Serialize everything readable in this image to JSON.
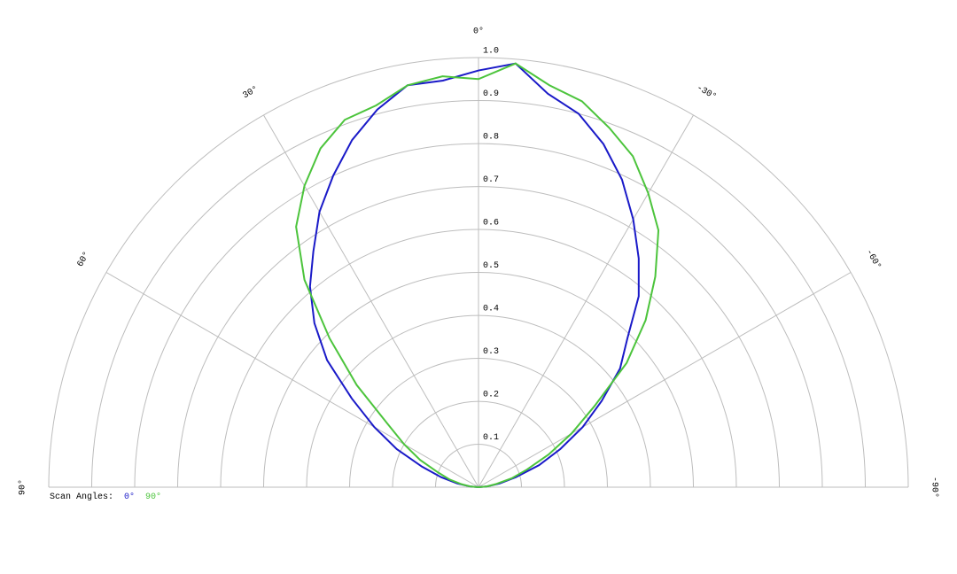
{
  "chart_data": {
    "type": "polar",
    "thetalim": [
      -90,
      90
    ],
    "rlim": [
      0,
      1
    ],
    "theta": [
      -90,
      -85,
      -80,
      -75,
      -70,
      -65,
      -60,
      -55,
      -50,
      -45,
      -40,
      -35,
      -30,
      -25,
      -20,
      -15,
      -10,
      -5,
      0,
      5,
      10,
      15,
      20,
      25,
      30,
      35,
      40,
      45,
      50,
      55,
      60,
      65,
      70,
      75,
      80,
      85,
      90
    ],
    "thetaticks": [
      {
        "value": 90,
        "label": "90°"
      },
      {
        "value": 60,
        "label": "60°"
      },
      {
        "value": 30,
        "label": "30°"
      },
      {
        "value": 0,
        "label": "0°"
      },
      {
        "value": -30,
        "label": "-30°"
      },
      {
        "value": -60,
        "label": "-60°"
      },
      {
        "value": -90,
        "label": "-90°"
      }
    ],
    "rticks": [
      0.1,
      0.2,
      0.3,
      0.4,
      0.5,
      0.6,
      0.7,
      0.8,
      0.9,
      {
        "value": 1,
        "label": "1.0"
      }
    ],
    "legend_title": "Scan Angles:",
    "series": [
      {
        "name": "0°",
        "color": "#1a1ac8",
        "values": [
          0,
          0.02,
          0.05,
          0.09,
          0.15,
          0.21,
          0.28,
          0.35,
          0.43,
          0.49,
          0.58,
          0.65,
          0.72,
          0.79,
          0.85,
          0.9,
          0.93,
          0.99,
          0.97,
          0.95,
          0.95,
          0.91,
          0.86,
          0.8,
          0.74,
          0.67,
          0.61,
          0.54,
          0.46,
          0.36,
          0.28,
          0.21,
          0.14,
          0.09,
          0.05,
          0.02,
          0
        ]
      },
      {
        "name": "90°",
        "color": "#4cc43c",
        "values": [
          0,
          0.02,
          0.04,
          0.08,
          0.12,
          0.18,
          0.25,
          0.33,
          0.45,
          0.55,
          0.64,
          0.73,
          0.79,
          0.85,
          0.89,
          0.93,
          0.95,
          0.99,
          0.95,
          0.96,
          0.95,
          0.92,
          0.91,
          0.87,
          0.81,
          0.74,
          0.63,
          0.49,
          0.37,
          0.26,
          0.2,
          0.15,
          0.1,
          0.07,
          0.04,
          0.02,
          0
        ]
      }
    ]
  }
}
